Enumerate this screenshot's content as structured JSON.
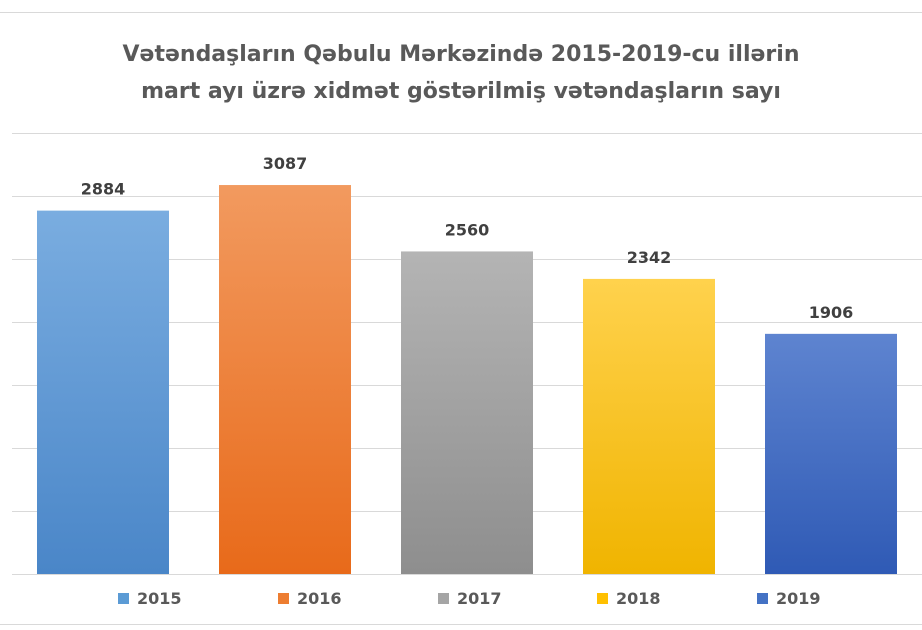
{
  "chart_data": {
    "type": "bar",
    "title_lines": [
      "Vətəndaşların Qəbulu Mərkəzində 2015-2019-cu illərin",
      "mart ayı üzrə xidmət göstərilmiş vətəndaşların sayı"
    ],
    "categories": [
      "2015",
      "2016",
      "2017",
      "2018",
      "2019"
    ],
    "values": [
      2884,
      3087,
      2560,
      2342,
      1906
    ],
    "data_labels": [
      "2884",
      "3087",
      "2560",
      "2342",
      "1906"
    ],
    "legend": [
      "2015",
      "2016",
      "2017",
      "2018",
      "2019"
    ],
    "legend_position": "bottom",
    "xlabel": "",
    "ylabel": "",
    "ylim": [
      0,
      3500
    ],
    "grid": true,
    "colors": {
      "2015": [
        "#7aade0",
        "#4a86c8"
      ],
      "2016": [
        "#f29a5f",
        "#e86a1a"
      ],
      "2017": [
        "#b4b4b4",
        "#8e8e8e"
      ],
      "2018": [
        "#ffd24d",
        "#f0b400"
      ],
      "2019": [
        "#5e84d0",
        "#2f5ab5"
      ]
    },
    "legend_colors": [
      "#5b9bd5",
      "#ed7d31",
      "#a5a5a5",
      "#ffc000",
      "#4472c4"
    ],
    "gridline_color": "#d9d9d9",
    "label_color": "#404040"
  }
}
